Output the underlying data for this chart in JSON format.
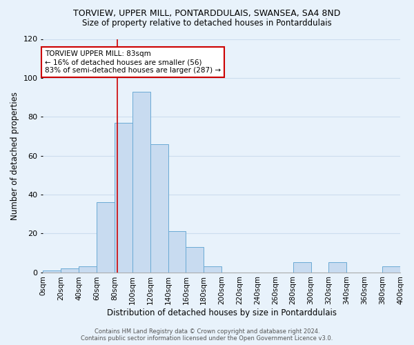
{
  "title1": "TORVIEW, UPPER MILL, PONTARDDULAIS, SWANSEA, SA4 8ND",
  "title2": "Size of property relative to detached houses in Pontarddulais",
  "xlabel": "Distribution of detached houses by size in Pontarddulais",
  "ylabel": "Number of detached properties",
  "annotation_title": "TORVIEW UPPER MILL: 83sqm",
  "annotation_line1": "← 16% of detached houses are smaller (56)",
  "annotation_line2": "83% of semi-detached houses are larger (287) →",
  "footer1": "Contains HM Land Registry data © Crown copyright and database right 2024.",
  "footer2": "Contains public sector information licensed under the Open Government Licence v3.0.",
  "bin_edges": [
    0,
    20,
    40,
    60,
    80,
    100,
    120,
    140,
    160,
    180,
    200,
    220,
    240,
    260,
    280,
    300,
    320,
    340,
    360,
    380,
    400
  ],
  "bar_heights": [
    1,
    2,
    3,
    36,
    77,
    93,
    66,
    21,
    13,
    3,
    0,
    0,
    0,
    0,
    5,
    0,
    5,
    0,
    0,
    3
  ],
  "bar_color": "#c8dbf0",
  "bar_edge_color": "#6aaad4",
  "red_line_x": 83,
  "ylim": [
    0,
    120
  ],
  "xlim": [
    0,
    400
  ],
  "background_color": "#e8f2fb",
  "annotation_box_color": "#ffffff",
  "annotation_box_edge": "#cc0000",
  "red_line_color": "#cc0000",
  "grid_color": "#ccddee",
  "title1_fontsize": 9,
  "title2_fontsize": 8.5,
  "xlabel_fontsize": 8.5,
  "ylabel_fontsize": 8.5,
  "tick_label_fontsize": 7.5,
  "annotation_fontsize": 7.5,
  "footer_fontsize": 6
}
